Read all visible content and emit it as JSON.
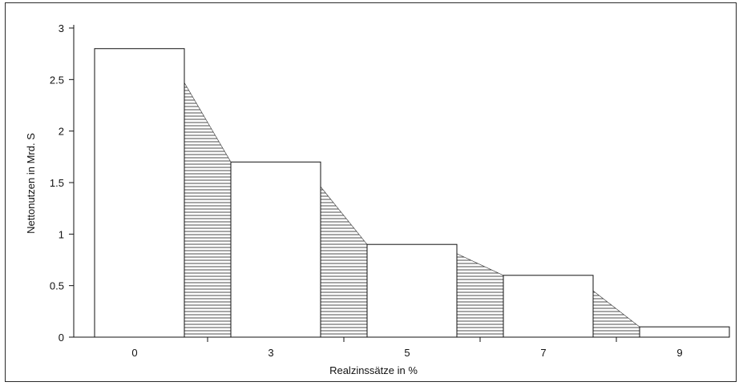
{
  "chart_data": {
    "type": "bar",
    "title": "",
    "xlabel": "Realzinssätze in %",
    "ylabel": "Nettonutzen in Mrd. S",
    "categories": [
      "0",
      "3",
      "5",
      "7",
      "9"
    ],
    "values": [
      2.8,
      1.7,
      0.9,
      0.6,
      0.1
    ],
    "ylim": [
      0,
      3
    ],
    "yticks": [
      "0",
      "0.5",
      "1",
      "1.5",
      "2",
      "2.5",
      "3"
    ],
    "grid": false,
    "legend": "none",
    "hatched_area_between_bars": true,
    "colors": {
      "bar_fill": "#ffffff",
      "stroke": "#111111",
      "hatch": "#333333"
    }
  }
}
